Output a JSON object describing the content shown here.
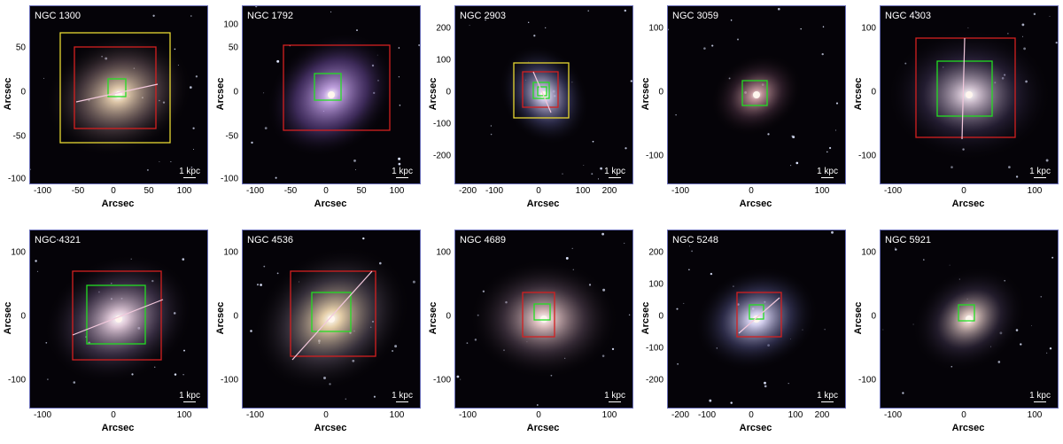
{
  "axis_label_x": "Arcsec",
  "axis_label_y": "Arcsec",
  "scale_label": "1 kpc",
  "colors": {
    "fov_red": "#d42020",
    "fov_green": "#22dd22",
    "fov_yellow": "#e8d832",
    "slit": "#f2c8dc",
    "border": "#6a6fb8"
  },
  "panels": [
    {
      "name": "NGC 1300",
      "xticks": [
        "-100",
        "-50",
        "0",
        "50",
        "100"
      ],
      "yticks": [
        "50",
        "0",
        "-50",
        "-100"
      ]
    },
    {
      "name": "NGC 1792",
      "xticks": [
        "-100",
        "-50",
        "0",
        "50",
        "100"
      ],
      "yticks": [
        "100",
        "50",
        "0",
        "-50",
        "-100"
      ]
    },
    {
      "name": "NGC 2903",
      "xticks": [
        "-200",
        "-100",
        "0",
        "100",
        "200"
      ],
      "yticks": [
        "200",
        "100",
        "0",
        "-100",
        "-200"
      ]
    },
    {
      "name": "NGC 3059",
      "xticks": [
        "-100",
        "0",
        "100"
      ],
      "yticks": [
        "100",
        "0",
        "-100"
      ]
    },
    {
      "name": "NGC 4303",
      "xticks": [
        "-100",
        "0",
        "100"
      ],
      "yticks": [
        "100",
        "0",
        "-100"
      ]
    },
    {
      "name": "NGC 4321",
      "xticks": [
        "-100",
        "0",
        "100"
      ],
      "yticks": [
        "100",
        "0",
        "-100"
      ]
    },
    {
      "name": "NGC 4536",
      "xticks": [
        "-100",
        "0",
        "100"
      ],
      "yticks": [
        "100",
        "0",
        "-100"
      ]
    },
    {
      "name": "NGC 4689",
      "xticks": [
        "-100",
        "0",
        "100"
      ],
      "yticks": [
        "100",
        "0",
        "-100"
      ]
    },
    {
      "name": "NGC 5248",
      "xticks": [
        "-200",
        "-100",
        "0",
        "100",
        "200"
      ],
      "yticks": [
        "200",
        "100",
        "0",
        "-100",
        "-200"
      ]
    },
    {
      "name": "NGC 5921",
      "xticks": [
        "-100",
        "0",
        "100"
      ],
      "yticks": [
        "100",
        "0",
        "-100"
      ]
    }
  ]
}
